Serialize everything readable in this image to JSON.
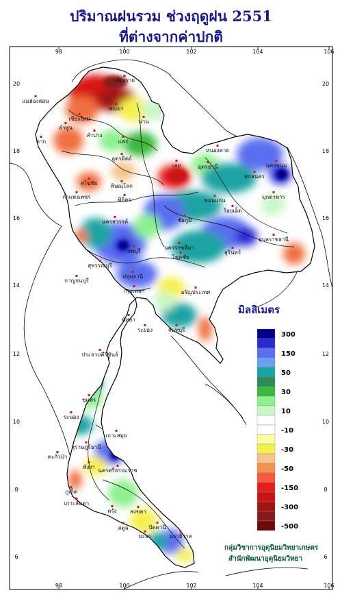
{
  "title_line1": "ปริมาณฝนรวม ช่วงฤดูฝน 2551",
  "title_line2": "ที่ต่างจากค่าปกติ",
  "longitude_ticks": [
    "98",
    "100",
    "102",
    "104",
    "106"
  ],
  "latitude_ticks": [
    "20",
    "18",
    "16",
    "14",
    "12",
    "10",
    "8",
    "6"
  ],
  "legend": {
    "title": "มิลลิเมตร",
    "classes": [
      {
        "color": "#00008b",
        "label": "300"
      },
      {
        "color": "#2a2ad4",
        "label": ""
      },
      {
        "color": "#5a6ef0",
        "label": "150"
      },
      {
        "color": "#6aa0f0",
        "label": ""
      },
      {
        "color": "#1aa3a3",
        "label": "50"
      },
      {
        "color": "#2e8b57",
        "label": ""
      },
      {
        "color": "#3cb83c",
        "label": "30"
      },
      {
        "color": "#8ef08e",
        "label": ""
      },
      {
        "color": "#c8f8c8",
        "label": "10"
      },
      {
        "color": "#ffffff",
        "label": ""
      },
      {
        "color": "#ffffff",
        "label": "-10"
      },
      {
        "color": "#ffffa0",
        "label": ""
      },
      {
        "color": "#f5f050",
        "label": "-30"
      },
      {
        "color": "#f5c48a",
        "label": ""
      },
      {
        "color": "#f59050",
        "label": "-50"
      },
      {
        "color": "#f55a3c",
        "label": ""
      },
      {
        "color": "#e81e1e",
        "label": "-150"
      },
      {
        "color": "#c81414",
        "label": ""
      },
      {
        "color": "#a01414",
        "label": "-300"
      },
      {
        "color": "#8a1a1a",
        "label": ""
      },
      {
        "color": "#6a0a0a",
        "label": "-500"
      }
    ]
  },
  "cities": [
    {
      "name": "เชียงราย"
    },
    {
      "name": "แม่ฮ่องสอน"
    },
    {
      "name": "พะเยา"
    },
    {
      "name": "เชียงใหม่"
    },
    {
      "name": "น่าน"
    },
    {
      "name": "ลำพูน"
    },
    {
      "name": "ลำปาง"
    },
    {
      "name": "แพร่"
    },
    {
      "name": "อุตรดิตถ์"
    },
    {
      "name": "ตาก"
    },
    {
      "name": "สุโขทัย"
    },
    {
      "name": "พิษณุโลก"
    },
    {
      "name": "เลย"
    },
    {
      "name": "กำแพงเพชร"
    },
    {
      "name": "พิจิตร"
    },
    {
      "name": "หนองคาย"
    },
    {
      "name": "อุดรธานี"
    },
    {
      "name": "นครพนม"
    },
    {
      "name": "สกลนคร"
    },
    {
      "name": "มุกดาหาร"
    },
    {
      "name": "ขอนแก่น"
    },
    {
      "name": "นครสวรรค์"
    },
    {
      "name": "ชัยภูมิ"
    },
    {
      "name": "ร้อยเอ็ด"
    },
    {
      "name": "อุบลราชธานี"
    },
    {
      "name": "ลพบุรี"
    },
    {
      "name": "นครราชสีมา"
    },
    {
      "name": "สุรินทร์"
    },
    {
      "name": "สุพรรณบุรี"
    },
    {
      "name": "โชคชัย"
    },
    {
      "name": "กาญจนบุรี"
    },
    {
      "name": "ปทุมธานี"
    },
    {
      "name": "กรุงเทพฯ"
    },
    {
      "name": "อรัญประเทศ"
    },
    {
      "name": "พัทยา"
    },
    {
      "name": "ระยอง"
    },
    {
      "name": "จันทบุรี"
    },
    {
      "name": "ประจวบคีรีขันธ์"
    },
    {
      "name": "ชุมพร"
    },
    {
      "name": "ระนอง"
    },
    {
      "name": "เกาะสมุย"
    },
    {
      "name": "สุราษฎร์ธานี"
    },
    {
      "name": "ตะกั่วป่า"
    },
    {
      "name": "พังงา"
    },
    {
      "name": "นครศรีธรรมราช"
    },
    {
      "name": "ภูเก็ต"
    },
    {
      "name": "เกาะลันตา"
    },
    {
      "name": "ตรัง"
    },
    {
      "name": "สงขลา"
    },
    {
      "name": "ปัตตานี"
    },
    {
      "name": "สตูล"
    },
    {
      "name": "ยะลา"
    },
    {
      "name": "นราธิวาส"
    }
  ],
  "credit_line1": "กลุ่มวิชาการอุตุนิยมวิทยาเกษตร",
  "credit_line2": "สำนักพัฒนาอุตุนิยมวิทยา"
}
